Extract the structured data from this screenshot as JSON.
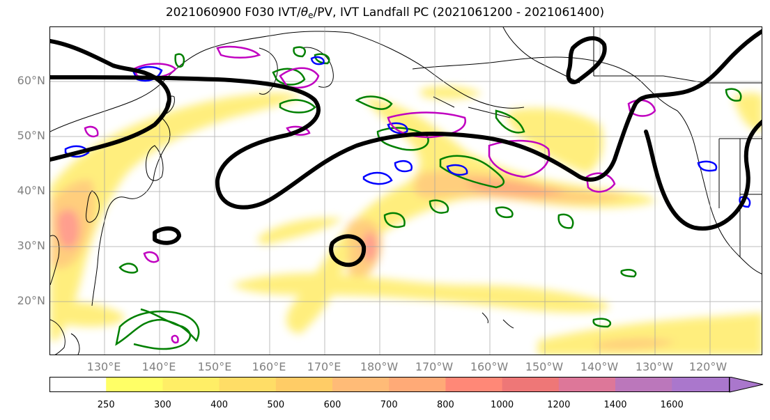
{
  "title": {
    "prefix": "2021060900 F030 IVT/",
    "theta": "θ",
    "theta_sub": "e",
    "suffix": "/PV, IVT Landfall PC (2021061200 - 2021061400)"
  },
  "map": {
    "lat_labels": [
      "60°N",
      "50°N",
      "40°N",
      "30°N",
      "20°N"
    ],
    "lon_labels": [
      "130°E",
      "140°E",
      "150°E",
      "160°E",
      "170°E",
      "180°W",
      "170°W",
      "160°W",
      "150°W",
      "140°W",
      "130°W",
      "120°W"
    ],
    "lon_range": [
      120,
      250
    ],
    "lat_range": [
      10,
      70
    ],
    "lat_ticks": [
      60,
      50,
      40,
      30,
      20
    ],
    "lon_ticks": [
      130,
      140,
      150,
      160,
      170,
      180,
      190,
      200,
      210,
      220,
      230,
      240
    ],
    "contour_colors": {
      "thetae_pv": "#000000",
      "green": "#008000",
      "blue": "#0000ff",
      "magenta": "#c000c0"
    }
  },
  "colorbar": {
    "ticks": [
      "250",
      "300",
      "400",
      "500",
      "600",
      "700",
      "800",
      "1000",
      "1200",
      "1400",
      "1600"
    ],
    "colors": [
      "#ffffff",
      "#ffff66",
      "#ffee66",
      "#ffdd66",
      "#ffcc66",
      "#ffbb77",
      "#ffaa77",
      "#ff8877",
      "#ee7777",
      "#dd7799",
      "#bb77bb",
      "#aa77cc"
    ],
    "extend": "max"
  }
}
